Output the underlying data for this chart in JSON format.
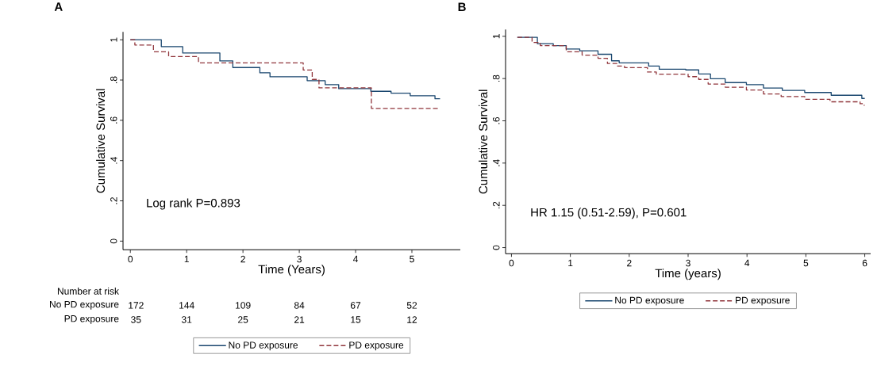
{
  "chart_data": [
    {
      "type": "step",
      "title": "A",
      "xlabel": "Time (Years)",
      "ylabel": "Cumulative Survival",
      "xlim": [
        -0.13,
        5.86
      ],
      "ylim": [
        -0.043,
        1.039
      ],
      "xticks": [
        0,
        1,
        2,
        3,
        4,
        5
      ],
      "yticks": [
        0,
        {
          "value": 0.2,
          "label": ".2"
        },
        {
          "value": 0.4,
          "label": ".4"
        },
        {
          "value": 0.6,
          "label": ".6"
        },
        {
          "value": 0.8,
          "label": ".8"
        },
        1
      ],
      "legend": "bottom",
      "grid": false,
      "series": [
        {
          "name": "No PD exposure",
          "color": "#1a476f",
          "line_style": "solid",
          "x": [
            0,
            0.55,
            0.93,
            1.59,
            1.82,
            2.3,
            2.48,
            3.14,
            3.46,
            3.7,
            4.27,
            4.63,
            4.97,
            5.41,
            5.5
          ],
          "values": [
            1.0,
            0.966,
            0.934,
            0.895,
            0.862,
            0.836,
            0.816,
            0.797,
            0.777,
            0.757,
            0.744,
            0.735,
            0.722,
            0.707,
            0.707
          ]
        },
        {
          "name": "PD exposure",
          "color": "#90353b",
          "line_style": "dashed",
          "x": [
            0,
            0.08,
            0.41,
            0.68,
            1.21,
            3.07,
            3.23,
            3.35,
            4.28,
            5.5
          ],
          "values": [
            1.0,
            0.974,
            0.94,
            0.917,
            0.885,
            0.85,
            0.803,
            0.761,
            0.659,
            0.659
          ]
        }
      ],
      "annotations": [
        "Log rank P=0.893",
        "Number at risk",
        "No PD exposure",
        "172",
        "144",
        "109",
        "84",
        "67",
        "52",
        "PD exposure",
        "35",
        "31",
        "25",
        "21",
        "15",
        "12"
      ]
    },
    {
      "type": "step",
      "title": "B",
      "xlabel": "Time (years)",
      "ylabel": "Cumulative Survival",
      "xlim": [
        -0.1,
        6.1
      ],
      "ylim": [
        -0.029,
        1.032
      ],
      "xticks": [
        0,
        1,
        2,
        3,
        4,
        5,
        6
      ],
      "yticks": [
        0,
        {
          "value": 0.2,
          "label": ".2"
        },
        {
          "value": 0.4,
          "label": ".4"
        },
        {
          "value": 0.6,
          "label": ".6"
        },
        {
          "value": 0.8,
          "label": ".8"
        },
        1
      ],
      "legend": "bottom",
      "grid": false,
      "series": [
        {
          "name": "No PD exposure",
          "color": "#1a476f",
          "line_style": "solid",
          "x": [
            0.1,
            0.44,
            0.71,
            0.93,
            1.16,
            1.47,
            1.7,
            1.83,
            2.33,
            2.51,
            2.96,
            3.18,
            3.38,
            3.63,
            3.99,
            4.28,
            4.6,
            4.98,
            5.43,
            5.95,
            6.0
          ],
          "values": [
            0.995,
            0.965,
            0.956,
            0.94,
            0.931,
            0.915,
            0.884,
            0.874,
            0.859,
            0.844,
            0.841,
            0.822,
            0.799,
            0.781,
            0.771,
            0.755,
            0.744,
            0.734,
            0.721,
            0.706,
            0.706
          ]
        },
        {
          "name": "PD exposure",
          "color": "#90353b",
          "line_style": "dashed",
          "x": [
            0.1,
            0.35,
            0.49,
            0.93,
            1.2,
            1.47,
            1.63,
            1.79,
            1.92,
            2.31,
            2.46,
            3.0,
            3.18,
            3.34,
            3.63,
            3.99,
            4.28,
            4.58,
            4.98,
            5.41,
            5.92,
            5.99
          ],
          "values": [
            0.995,
            0.971,
            0.956,
            0.927,
            0.911,
            0.896,
            0.871,
            0.859,
            0.852,
            0.831,
            0.821,
            0.809,
            0.796,
            0.774,
            0.759,
            0.746,
            0.727,
            0.715,
            0.702,
            0.69,
            0.681,
            0.671
          ]
        }
      ],
      "annotations": [
        "HR 1.15 (0.51-2.59), P=0.601"
      ]
    }
  ]
}
